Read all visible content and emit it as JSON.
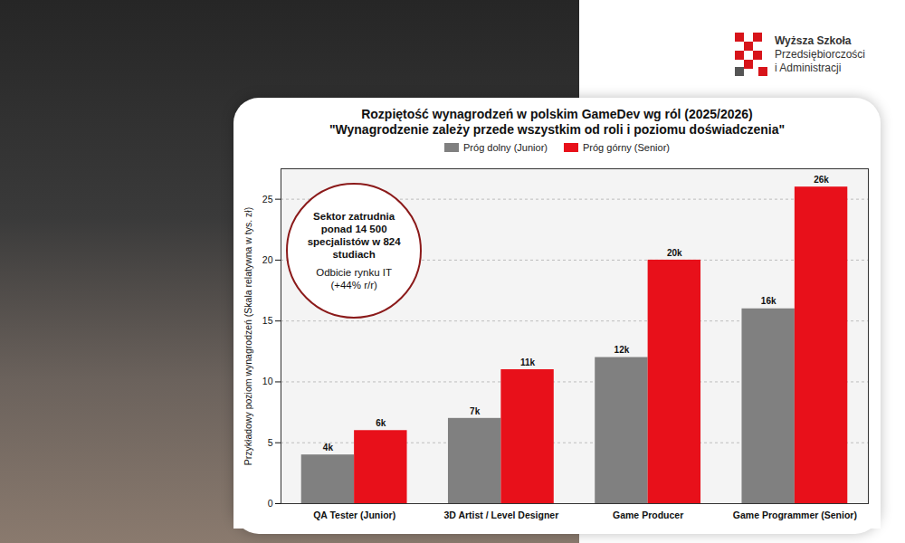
{
  "brand": {
    "lines": [
      "Wyższa Szkoła",
      "Przedsiębiorczości",
      "i Administracji"
    ]
  },
  "chart_data": {
    "type": "bar",
    "title": "Rozpiętość wynagrodzeń w polskim GameDev wg ról (2025/2026)",
    "subtitle": "\"Wynagrodzenie zależy przede wszystkim od roli i poziomu doświadczenia\"",
    "y_label": "Przykładowy poziom wynagrodzeń (Skala relatywna w tys. zł)",
    "categories": [
      "QA Tester (Junior)",
      "3D Artist / Level Designer",
      "Game Producer",
      "Game Programmer (Senior)"
    ],
    "series": [
      {
        "name": "Próg dolny (Junior)",
        "color": "#808080",
        "values": [
          4,
          7,
          12,
          16
        ],
        "value_labels": [
          "4k",
          "7k",
          "12k",
          "16k"
        ]
      },
      {
        "name": "Próg górny (Senior)",
        "color": "#e8101a",
        "values": [
          6,
          11,
          20,
          26
        ],
        "value_labels": [
          "6k",
          "11k",
          "20k",
          "26k"
        ]
      }
    ],
    "ylim": [
      0,
      27.5
    ],
    "yticks": [
      0,
      5,
      10,
      15,
      20,
      25
    ],
    "grid": true,
    "legend": "top",
    "data_labels": true,
    "annotations": [
      "Sektor zatrudnia ponad 14 500 specjalistów w 824 studiach",
      "Odbicie rynku IT (+44% r/r)"
    ]
  }
}
